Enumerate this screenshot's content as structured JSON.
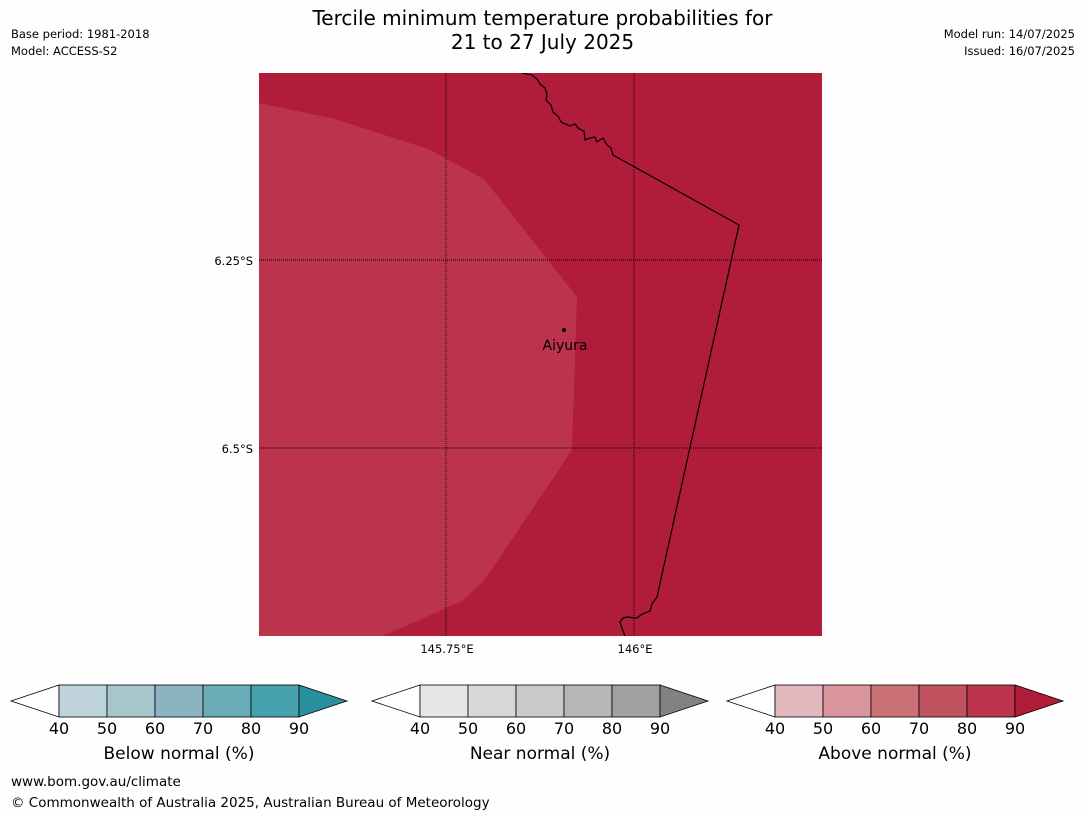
{
  "header": {
    "title_line1": "Tercile minimum temperature probabilities for",
    "title_line2": "21 to 27 July 2025",
    "base_period": "Base period: 1981-2018",
    "model": "Model: ACCESS-S2",
    "model_run": "Model run: 14/07/2025",
    "issued": "Issued: 16/07/2025"
  },
  "map": {
    "lat_labels": [
      "6.25°S",
      "6.5°S"
    ],
    "lon_labels": [
      "145.75°E",
      "146°E"
    ],
    "place_name": "Aiyura",
    "region_colors": {
      "above_80_90": "#b01c39",
      "above_70_80": "#bb344b"
    },
    "gridline_style": "dotted"
  },
  "colorbars": [
    {
      "label": "Below normal (%)",
      "ticks": [
        "40",
        "50",
        "60",
        "70",
        "80",
        "90"
      ],
      "colors": [
        "#ffffff",
        "#bed4da",
        "#a6c6cc",
        "#8ab4c1",
        "#6bacb9",
        "#48a1ae",
        "#2a8f9d"
      ]
    },
    {
      "label": "Near normal (%)",
      "ticks": [
        "40",
        "50",
        "60",
        "70",
        "80",
        "90"
      ],
      "colors": [
        "#ffffff",
        "#e6e6e6",
        "#d8d8d8",
        "#cacaca",
        "#b6b6b6",
        "#a0a0a0",
        "#828282"
      ]
    },
    {
      "label": "Above normal (%)",
      "ticks": [
        "40",
        "50",
        "60",
        "70",
        "80",
        "90"
      ],
      "colors": [
        "#ffffff",
        "#e2b8bd",
        "#d8959c",
        "#ca7178",
        "#c0535f",
        "#bb344b",
        "#b01c39"
      ]
    }
  ],
  "footer": {
    "url": "www.bom.gov.au/climate",
    "copyright": "© Commonwealth of Australia 2025, Australian Bureau of Meteorology"
  }
}
